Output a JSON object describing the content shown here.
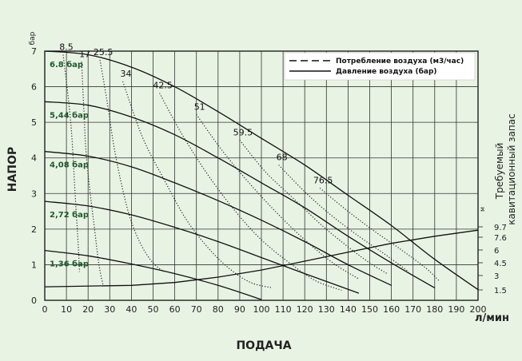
{
  "chart_data": {
    "type": "line",
    "xlabel": "ПОДАЧА",
    "ylabel": "НАПОР",
    "x_unit": "л/мин",
    "y_unit": "бар",
    "xlim": [
      0,
      200
    ],
    "ylim": [
      0,
      7
    ],
    "x_ticks": [
      0,
      10,
      20,
      30,
      40,
      50,
      60,
      70,
      80,
      90,
      100,
      110,
      120,
      130,
      140,
      150,
      160,
      170,
      180,
      190,
      200
    ],
    "y_ticks": [
      0,
      1,
      2,
      3,
      4,
      5,
      6,
      7
    ],
    "grid": true,
    "legend_position": "top-right",
    "legend": [
      {
        "label": "Потребление воздуха (м3/час)",
        "style": "dashed"
      },
      {
        "label": "Давление воздуха (бар)",
        "style": "solid"
      }
    ],
    "right_axis": {
      "label": "Требуемый кавитационный запас",
      "unit": "м",
      "ticks": [
        "1.5",
        "3",
        "4.5",
        "6",
        "7.6",
        "9.7"
      ]
    },
    "pressure_series": [
      {
        "name": "6.8 бар",
        "points": [
          [
            0,
            7.0
          ],
          [
            20,
            6.9
          ],
          [
            40,
            6.55
          ],
          [
            60,
            6.0
          ],
          [
            80,
            5.3
          ],
          [
            100,
            4.55
          ],
          [
            120,
            3.8
          ],
          [
            140,
            2.95
          ],
          [
            160,
            2.1
          ],
          [
            180,
            1.15
          ],
          [
            200,
            0.3
          ]
        ]
      },
      {
        "name": "5,44 бар",
        "points": [
          [
            0,
            5.58
          ],
          [
            20,
            5.48
          ],
          [
            40,
            5.15
          ],
          [
            60,
            4.65
          ],
          [
            80,
            4.0
          ],
          [
            100,
            3.3
          ],
          [
            120,
            2.6
          ],
          [
            140,
            1.8
          ],
          [
            160,
            1.05
          ],
          [
            180,
            0.35
          ]
        ]
      },
      {
        "name": "4,08 бар",
        "points": [
          [
            0,
            4.18
          ],
          [
            20,
            4.05
          ],
          [
            40,
            3.75
          ],
          [
            60,
            3.3
          ],
          [
            80,
            2.8
          ],
          [
            100,
            2.25
          ],
          [
            120,
            1.65
          ],
          [
            140,
            1.0
          ],
          [
            160,
            0.42
          ]
        ]
      },
      {
        "name": "2,72 бар",
        "points": [
          [
            0,
            2.78
          ],
          [
            20,
            2.65
          ],
          [
            40,
            2.4
          ],
          [
            60,
            2.05
          ],
          [
            80,
            1.65
          ],
          [
            100,
            1.2
          ],
          [
            120,
            0.75
          ],
          [
            145,
            0.2
          ]
        ]
      },
      {
        "name": "1,36 бар",
        "points": [
          [
            0,
            1.4
          ],
          [
            20,
            1.25
          ],
          [
            40,
            1.02
          ],
          [
            60,
            0.75
          ],
          [
            80,
            0.42
          ],
          [
            100,
            0.02
          ]
        ]
      }
    ],
    "air_consumption_series": [
      {
        "name": "8.5",
        "points": [
          [
            8.5,
            6.9
          ],
          [
            12,
            5.0
          ],
          [
            14,
            3.0
          ],
          [
            15.5,
            1.5
          ],
          [
            16,
            0.8
          ]
        ]
      },
      {
        "name": "17",
        "points": [
          [
            17,
            6.7
          ],
          [
            18,
            5.4
          ],
          [
            19,
            4.2
          ],
          [
            21,
            3.0
          ],
          [
            23,
            2.0
          ],
          [
            25,
            1.0
          ],
          [
            27,
            0.4
          ]
        ]
      },
      {
        "name": "25.5",
        "points": [
          [
            25.5,
            6.75
          ],
          [
            29,
            5.5
          ],
          [
            32,
            4.3
          ],
          [
            36,
            3.1
          ],
          [
            40,
            2.2
          ],
          [
            45,
            1.5
          ],
          [
            50,
            1.05
          ],
          [
            55,
            0.8
          ]
        ]
      },
      {
        "name": "34",
        "points": [
          [
            36,
            6.15
          ],
          [
            45,
            4.6
          ],
          [
            55,
            3.4
          ],
          [
            65,
            2.3
          ],
          [
            75,
            1.5
          ],
          [
            85,
            0.9
          ],
          [
            95,
            0.5
          ],
          [
            105,
            0.35
          ]
        ]
      },
      {
        "name": "42.5",
        "points": [
          [
            53,
            5.82
          ],
          [
            63,
            4.7
          ],
          [
            75,
            3.55
          ],
          [
            88,
            2.5
          ],
          [
            100,
            1.7
          ],
          [
            113,
            1.05
          ],
          [
            125,
            0.55
          ],
          [
            137,
            0.28
          ]
        ]
      },
      {
        "name": "51",
        "points": [
          [
            70,
            5.22
          ],
          [
            82,
            4.2
          ],
          [
            95,
            3.25
          ],
          [
            108,
            2.4
          ],
          [
            120,
            1.7
          ],
          [
            133,
            1.05
          ],
          [
            145,
            0.6
          ]
        ]
      },
      {
        "name": "59.5",
        "points": [
          [
            90,
            4.5
          ],
          [
            102,
            3.6
          ],
          [
            115,
            2.85
          ],
          [
            128,
            2.1
          ],
          [
            140,
            1.5
          ],
          [
            150,
            1.05
          ],
          [
            158,
            0.75
          ]
        ]
      },
      {
        "name": "68",
        "points": [
          [
            108,
            3.8
          ],
          [
            120,
            3.05
          ],
          [
            132,
            2.4
          ],
          [
            145,
            1.8
          ],
          [
            158,
            1.25
          ],
          [
            168,
            0.8
          ]
        ]
      },
      {
        "name": "76.5",
        "points": [
          [
            127,
            3.15
          ],
          [
            140,
            2.5
          ],
          [
            152,
            1.95
          ],
          [
            165,
            1.4
          ],
          [
            176,
            0.9
          ],
          [
            182,
            0.55
          ]
        ]
      }
    ],
    "npsh_curve": {
      "points": [
        [
          0,
          0.38
        ],
        [
          40,
          0.42
        ],
        [
          60,
          0.5
        ],
        [
          80,
          0.65
        ],
        [
          100,
          0.85
        ],
        [
          120,
          1.1
        ],
        [
          140,
          1.35
        ],
        [
          160,
          1.6
        ],
        [
          180,
          1.8
        ],
        [
          200,
          1.97
        ]
      ]
    }
  }
}
